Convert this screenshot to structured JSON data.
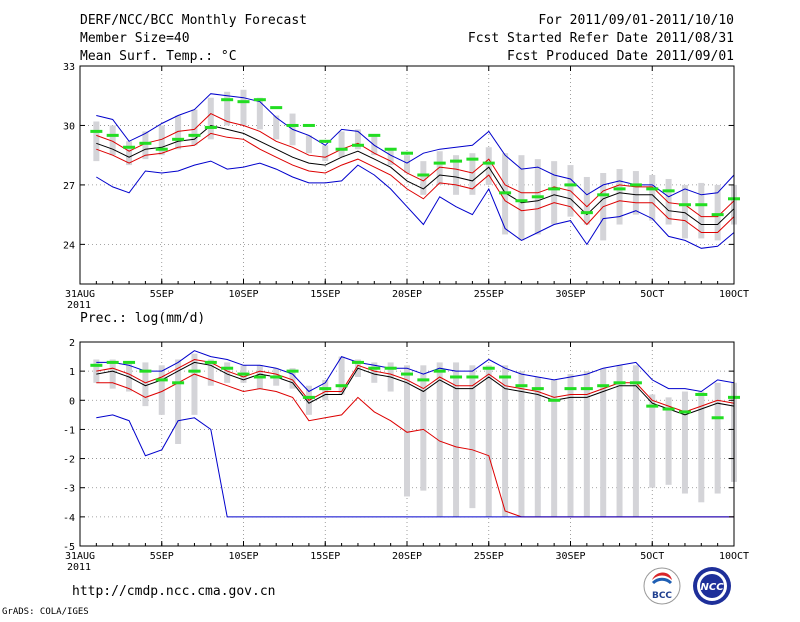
{
  "header": {
    "title": "DERF/NCC/BCC Monthly Forecast",
    "member_size": "Member Size=40",
    "variable": "Mean Surf. Temp.: °C",
    "period": "For 2011/09/01-2011/10/10",
    "started": "Fcst Started Refer Date 2011/08/31",
    "produced": "Fcst Produced Date 2011/09/01"
  },
  "footer": {
    "url": "http://cmdp.ncc.cma.gov.cn",
    "credit": "GrADS: COLA/IGES",
    "logo_bcc": "BCC",
    "logo_ncc": "NCC"
  },
  "colors": {
    "bars": "#d4d4d8",
    "median": "#22dd22",
    "mean": "#000000",
    "spread": "#dd0000",
    "envelope": "#0000cc"
  },
  "chart_data": [
    {
      "type": "line",
      "title": "Mean Surf. Temp.: °C",
      "ylim": [
        22,
        33
      ],
      "yticks": [
        24,
        27,
        30,
        33
      ],
      "xlim": [
        0,
        40
      ],
      "xticks": [
        {
          "x": 0,
          "label": "31AUG",
          "sub": "2011"
        },
        {
          "x": 5,
          "label": "5SEP"
        },
        {
          "x": 10,
          "label": "10SEP"
        },
        {
          "x": 15,
          "label": "15SEP"
        },
        {
          "x": 20,
          "label": "20SEP"
        },
        {
          "x": 25,
          "label": "25SEP"
        },
        {
          "x": 30,
          "label": "30SEP"
        },
        {
          "x": 35,
          "label": "5OCT"
        },
        {
          "x": 40,
          "label": "10OCT"
        }
      ],
      "x": [
        1,
        2,
        3,
        4,
        5,
        6,
        7,
        8,
        9,
        10,
        11,
        12,
        13,
        14,
        15,
        16,
        17,
        18,
        19,
        20,
        21,
        22,
        23,
        24,
        25,
        26,
        27,
        28,
        29,
        30,
        31,
        32,
        33,
        34,
        35,
        36,
        37,
        38,
        39,
        40
      ],
      "bar_low": [
        28.2,
        28.5,
        28.0,
        28.3,
        28.5,
        28.8,
        29.0,
        29.3,
        30.0,
        30.0,
        29.8,
        29.3,
        29.0,
        28.6,
        28.2,
        28.4,
        28.8,
        28.5,
        28.0,
        27.6,
        26.5,
        27.0,
        26.5,
        26.5,
        27.0,
        24.5,
        24.2,
        24.5,
        25.0,
        25.4,
        25.0,
        24.2,
        25.0,
        25.5,
        25.2,
        25.0,
        24.3,
        24.3,
        24.2,
        25.0
      ],
      "bar_high": [
        30.2,
        30.0,
        29.2,
        29.7,
        30.0,
        30.5,
        30.8,
        31.4,
        31.7,
        31.8,
        31.4,
        30.5,
        30.6,
        29.5,
        29.0,
        29.7,
        29.8,
        29.5,
        28.8,
        28.5,
        28.2,
        28.7,
        28.5,
        28.6,
        28.9,
        28.6,
        28.5,
        28.3,
        28.2,
        28.0,
        27.4,
        27.6,
        27.8,
        27.7,
        27.5,
        27.3,
        27.0,
        27.1,
        27.0,
        27.0
      ],
      "series": [
        {
          "name": "median",
          "style": "dash",
          "values": [
            29.7,
            29.5,
            28.9,
            29.1,
            28.8,
            29.3,
            29.5,
            29.9,
            31.3,
            31.2,
            31.3,
            30.9,
            30.0,
            30.0,
            29.2,
            28.8,
            29.0,
            29.5,
            28.8,
            28.6,
            27.5,
            28.1,
            28.2,
            28.3,
            28.1,
            26.6,
            26.2,
            26.4,
            26.8,
            27.0,
            25.6,
            26.5,
            26.8,
            27.0,
            26.8,
            26.7,
            26.0,
            26.0,
            25.5,
            26.3
          ]
        },
        {
          "name": "mean",
          "values": [
            29.1,
            28.8,
            28.4,
            28.8,
            28.9,
            29.2,
            29.3,
            30.0,
            29.8,
            29.6,
            29.2,
            28.8,
            28.4,
            28.1,
            28.0,
            28.4,
            28.7,
            28.3,
            27.9,
            27.2,
            26.8,
            27.5,
            27.4,
            27.2,
            27.9,
            26.6,
            26.1,
            26.2,
            26.5,
            26.3,
            25.5,
            26.3,
            26.6,
            26.5,
            26.5,
            25.7,
            25.6,
            25.0,
            25.0,
            25.8
          ]
        },
        {
          "name": "mean_plus_sd",
          "color_key": "spread",
          "values": [
            29.5,
            29.2,
            28.7,
            29.1,
            29.3,
            29.7,
            29.8,
            30.6,
            30.2,
            30.0,
            29.7,
            29.2,
            28.9,
            28.5,
            28.4,
            28.8,
            29.1,
            28.6,
            28.2,
            27.6,
            27.2,
            27.9,
            27.8,
            27.6,
            28.3,
            27.0,
            26.6,
            26.6,
            26.9,
            26.7,
            25.9,
            26.7,
            27.0,
            26.9,
            26.9,
            26.1,
            26.0,
            25.4,
            25.4,
            26.2
          ]
        },
        {
          "name": "mean_minus_sd",
          "color_key": "spread",
          "values": [
            28.8,
            28.5,
            28.1,
            28.5,
            28.6,
            28.9,
            29.0,
            29.6,
            29.4,
            29.3,
            28.8,
            28.4,
            28.0,
            27.7,
            27.6,
            28.0,
            28.3,
            27.9,
            27.5,
            26.8,
            26.3,
            27.1,
            27.0,
            26.8,
            27.5,
            26.2,
            25.7,
            25.8,
            26.1,
            25.9,
            25.0,
            25.9,
            26.2,
            26.1,
            26.1,
            25.3,
            25.2,
            24.6,
            24.6,
            25.4
          ]
        },
        {
          "name": "max",
          "color_key": "envelope",
          "values": [
            30.5,
            30.3,
            29.2,
            29.6,
            30.1,
            30.5,
            30.8,
            31.6,
            31.5,
            31.4,
            31.2,
            30.4,
            29.8,
            29.5,
            29.0,
            29.8,
            29.7,
            29.0,
            28.5,
            28.1,
            28.6,
            28.8,
            28.9,
            29.0,
            29.7,
            28.5,
            27.8,
            27.9,
            27.5,
            27.3,
            26.5,
            27.0,
            27.2,
            27.0,
            27.0,
            26.4,
            26.8,
            26.5,
            26.6,
            27.5
          ]
        },
        {
          "name": "min",
          "color_key": "envelope",
          "values": [
            27.4,
            26.9,
            26.6,
            27.7,
            27.6,
            27.7,
            28.0,
            28.2,
            27.8,
            27.9,
            28.1,
            27.8,
            27.4,
            27.1,
            27.1,
            27.2,
            28.0,
            27.5,
            26.8,
            25.9,
            25.0,
            26.4,
            25.9,
            25.5,
            26.8,
            24.8,
            24.2,
            24.6,
            25.0,
            25.2,
            24.0,
            25.3,
            25.4,
            25.7,
            25.3,
            24.4,
            24.2,
            23.8,
            23.9,
            24.6
          ]
        }
      ]
    },
    {
      "type": "line",
      "title": "Prec.: log(mm/d)",
      "ylim": [
        -5,
        2
      ],
      "yticks": [
        -5,
        -4,
        -3,
        -2,
        -1,
        0,
        1,
        2
      ],
      "xlim": [
        0,
        40
      ],
      "xticks": [
        {
          "x": 0,
          "label": "31AUG",
          "sub": "2011"
        },
        {
          "x": 5,
          "label": "5SEP"
        },
        {
          "x": 10,
          "label": "10SEP"
        },
        {
          "x": 15,
          "label": "15SEP"
        },
        {
          "x": 20,
          "label": "20SEP"
        },
        {
          "x": 25,
          "label": "25SEP"
        },
        {
          "x": 30,
          "label": "30SEP"
        },
        {
          "x": 35,
          "label": "5OCT"
        },
        {
          "x": 40,
          "label": "10OCT"
        }
      ],
      "x": [
        1,
        2,
        3,
        4,
        5,
        6,
        7,
        8,
        9,
        10,
        11,
        12,
        13,
        14,
        15,
        16,
        17,
        18,
        19,
        20,
        21,
        22,
        23,
        24,
        25,
        26,
        27,
        28,
        29,
        30,
        31,
        32,
        33,
        34,
        35,
        36,
        37,
        38,
        39,
        40
      ],
      "bar_low": [
        0.6,
        0.4,
        0.3,
        -0.2,
        -0.5,
        -1.5,
        -0.5,
        0.5,
        0.6,
        0.6,
        0.4,
        0.5,
        0.4,
        -0.5,
        0.0,
        0.2,
        0.8,
        0.6,
        0.3,
        -3.3,
        -3.1,
        -4.0,
        -4.0,
        -3.7,
        -4.0,
        -4.0,
        -4.0,
        -4.0,
        -4.0,
        -4.0,
        -4.0,
        -4.0,
        -4.0,
        -4.0,
        -3.0,
        -2.9,
        -3.2,
        -3.5,
        -3.2,
        -2.8
      ],
      "bar_high": [
        1.4,
        1.4,
        1.3,
        1.3,
        1.2,
        1.4,
        1.6,
        1.4,
        1.3,
        1.2,
        1.2,
        1.1,
        1.1,
        0.5,
        0.7,
        1.5,
        1.4,
        1.3,
        1.3,
        1.2,
        1.2,
        1.3,
        1.3,
        1.2,
        1.2,
        1.2,
        1.0,
        0.8,
        0.7,
        0.9,
        1.0,
        1.1,
        1.2,
        1.2,
        0.2,
        0.1,
        0.3,
        0.3,
        0.6,
        0.6
      ],
      "series": [
        {
          "name": "median",
          "style": "dash",
          "values": [
            1.2,
            1.3,
            1.3,
            1.0,
            0.7,
            0.6,
            1.0,
            1.3,
            1.1,
            0.9,
            0.8,
            0.8,
            1.0,
            0.1,
            0.4,
            0.5,
            1.3,
            1.1,
            1.1,
            0.9,
            0.7,
            1.0,
            0.8,
            0.8,
            1.1,
            0.8,
            0.5,
            0.4,
            0.0,
            0.4,
            0.4,
            0.5,
            0.6,
            0.6,
            -0.2,
            -0.3,
            -0.4,
            0.2,
            -0.6,
            0.1
          ]
        },
        {
          "name": "mean",
          "values": [
            0.9,
            1.0,
            0.8,
            0.5,
            0.7,
            1.0,
            1.3,
            1.2,
            0.9,
            0.7,
            0.9,
            0.8,
            0.6,
            -0.1,
            0.2,
            0.2,
            1.1,
            0.9,
            0.8,
            0.6,
            0.3,
            0.7,
            0.4,
            0.4,
            0.8,
            0.4,
            0.3,
            0.2,
            0.0,
            0.1,
            0.1,
            0.3,
            0.5,
            0.5,
            -0.1,
            -0.3,
            -0.5,
            -0.3,
            -0.1,
            -0.2
          ]
        },
        {
          "name": "mean_plus_sd",
          "color_key": "spread",
          "values": [
            1.0,
            1.1,
            0.9,
            0.6,
            0.8,
            1.1,
            1.4,
            1.3,
            1.0,
            0.8,
            1.0,
            0.9,
            0.7,
            0.0,
            0.3,
            0.3,
            1.2,
            1.0,
            0.9,
            0.7,
            0.4,
            0.8,
            0.5,
            0.5,
            0.9,
            0.5,
            0.4,
            0.3,
            0.1,
            0.2,
            0.2,
            0.4,
            0.6,
            0.6,
            0.0,
            -0.2,
            -0.4,
            -0.2,
            0.0,
            -0.1
          ]
        },
        {
          "name": "mean_minus_sd",
          "color_key": "spread",
          "values": [
            0.6,
            0.6,
            0.4,
            0.1,
            0.3,
            0.6,
            0.9,
            0.7,
            0.5,
            0.3,
            0.4,
            0.3,
            0.1,
            -0.7,
            -0.6,
            -0.5,
            0.1,
            -0.4,
            -0.7,
            -1.1,
            -1.0,
            -1.4,
            -1.6,
            -1.7,
            -1.9,
            -3.8,
            -4.0,
            -4.0,
            -4.0,
            -4.0,
            -4.0,
            -4.0,
            -4.0,
            -4.0,
            -4.0,
            -4.0,
            -4.0,
            -4.0,
            -4.0,
            -4.0
          ]
        },
        {
          "name": "max",
          "color_key": "envelope",
          "values": [
            1.3,
            1.3,
            1.2,
            1.0,
            1.0,
            1.3,
            1.7,
            1.5,
            1.4,
            1.2,
            1.2,
            1.1,
            0.9,
            0.3,
            0.6,
            1.5,
            1.3,
            1.2,
            1.1,
            1.1,
            0.9,
            1.1,
            1.0,
            1.0,
            1.4,
            1.1,
            0.9,
            0.8,
            0.7,
            0.8,
            0.9,
            1.1,
            1.2,
            1.3,
            0.7,
            0.4,
            0.4,
            0.3,
            0.7,
            0.6
          ]
        },
        {
          "name": "min",
          "color_key": "envelope",
          "values": [
            -0.6,
            -0.5,
            -0.7,
            -1.9,
            -1.7,
            -0.7,
            -0.6,
            -1.0,
            -4.0,
            -4.0,
            -4.0,
            -4.0,
            -4.0,
            -4.0,
            -4.0,
            -4.0,
            -4.0,
            -4.0,
            -4.0,
            -4.0,
            -4.0,
            -4.0,
            -4.0,
            -4.0,
            -4.0,
            -4.0,
            -4.0,
            -4.0,
            -4.0,
            -4.0,
            -4.0,
            -4.0,
            -4.0,
            -4.0,
            -4.0,
            -4.0,
            -4.0,
            -4.0,
            -4.0,
            -4.0
          ]
        }
      ]
    }
  ]
}
